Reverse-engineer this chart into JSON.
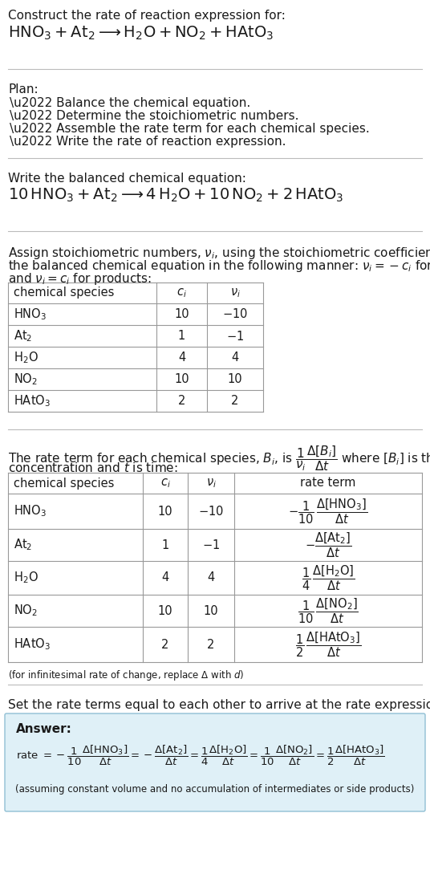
{
  "bg_color": "#ffffff",
  "answer_box_color": "#dff0f7",
  "answer_box_border": "#90bfd4",
  "text_color": "#1a1a1a",
  "sep_color": "#bbbbbb",
  "table_line_color": "#999999",
  "sec1_title": "Construct the rate of reaction expression for:",
  "sec1_rxn": "$\\mathrm{HNO_3} + \\mathrm{At_2} \\longrightarrow \\mathrm{H_2O} + \\mathrm{NO_2} + \\mathrm{HAtO_3}$",
  "plan_header": "Plan:",
  "plan_items": [
    "\\u2022 Balance the chemical equation.",
    "\\u2022 Determine the stoichiometric numbers.",
    "\\u2022 Assemble the rate term for each chemical species.",
    "\\u2022 Write the rate of reaction expression."
  ],
  "bal_header": "Write the balanced chemical equation:",
  "bal_rxn": "$10\\,\\mathrm{HNO_3} + \\mathrm{At_2} \\longrightarrow 4\\,\\mathrm{H_2O} + 10\\,\\mathrm{NO_2} + 2\\,\\mathrm{HAtO_3}$",
  "stoich_intro_1": "Assign stoichiometric numbers, $\\nu_i$, using the stoichiometric coefficients, $c_i$, from",
  "stoich_intro_2": "the balanced chemical equation in the following manner: $\\nu_i = -c_i$ for reactants",
  "stoich_intro_3": "and $\\nu_i = c_i$ for products:",
  "t1_headers": [
    "chemical species",
    "$c_i$",
    "$\\nu_i$"
  ],
  "t1_rows": [
    [
      "$\\mathrm{HNO_3}$",
      "10",
      "$-10$"
    ],
    [
      "$\\mathrm{At_2}$",
      "1",
      "$-1$"
    ],
    [
      "$\\mathrm{H_2O}$",
      "4",
      "4"
    ],
    [
      "$\\mathrm{NO_2}$",
      "10",
      "10"
    ],
    [
      "$\\mathrm{HAtO_3}$",
      "2",
      "2"
    ]
  ],
  "rate_intro_1": "The rate term for each chemical species, $B_i$, is $\\dfrac{1}{\\nu_i}\\dfrac{\\Delta[B_i]}{\\Delta t}$ where $[B_i]$ is the amount",
  "rate_intro_2": "concentration and $t$ is time:",
  "t2_headers": [
    "chemical species",
    "$c_i$",
    "$\\nu_i$",
    "rate term"
  ],
  "t2_rows": [
    [
      "$\\mathrm{HNO_3}$",
      "10",
      "$-10$",
      "$-\\dfrac{1}{10}\\,\\dfrac{\\Delta[\\mathrm{HNO_3}]}{\\Delta t}$"
    ],
    [
      "$\\mathrm{At_2}$",
      "1",
      "$-1$",
      "$-\\dfrac{\\Delta[\\mathrm{At_2}]}{\\Delta t}$"
    ],
    [
      "$\\mathrm{H_2O}$",
      "4",
      "4",
      "$\\dfrac{1}{4}\\,\\dfrac{\\Delta[\\mathrm{H_2O}]}{\\Delta t}$"
    ],
    [
      "$\\mathrm{NO_2}$",
      "10",
      "10",
      "$\\dfrac{1}{10}\\,\\dfrac{\\Delta[\\mathrm{NO_2}]}{\\Delta t}$"
    ],
    [
      "$\\mathrm{HAtO_3}$",
      "2",
      "2",
      "$\\dfrac{1}{2}\\,\\dfrac{\\Delta[\\mathrm{HAtO_3}]}{\\Delta t}$"
    ]
  ],
  "inf_note": "(for infinitesimal rate of change, replace $\\Delta$ with $d$)",
  "ans_intro": "Set the rate terms equal to each other to arrive at the rate expression:",
  "ans_label": "Answer:",
  "ans_rate": "rate $= -\\dfrac{1}{10}\\dfrac{\\Delta[\\mathrm{HNO_3}]}{\\Delta t} = -\\dfrac{\\Delta[\\mathrm{At_2}]}{\\Delta t} = \\dfrac{1}{4}\\dfrac{\\Delta[\\mathrm{H_2O}]}{\\Delta t} = \\dfrac{1}{10}\\dfrac{\\Delta[\\mathrm{NO_2}]}{\\Delta t} = \\dfrac{1}{2}\\dfrac{\\Delta[\\mathrm{HAtO_3}]}{\\Delta t}$",
  "ans_note": "(assuming constant volume and no accumulation of intermediates or side products)"
}
